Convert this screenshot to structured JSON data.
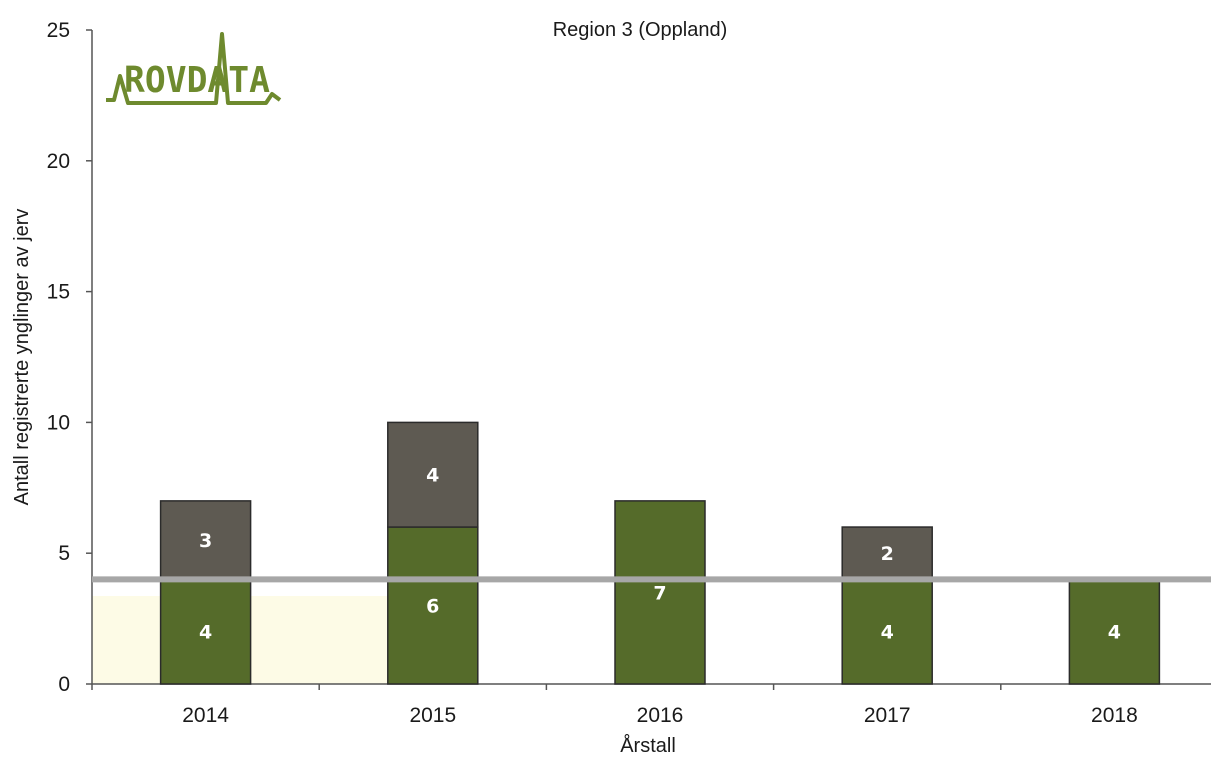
{
  "chart_data": {
    "type": "bar",
    "stacked": true,
    "title": "Region 3 (Oppland)",
    "xlabel": "Årstall",
    "ylabel": "Antall registrerte ynglinger av jerv",
    "ylim": [
      0,
      25
    ],
    "yticks": [
      0,
      5,
      10,
      15,
      20,
      25
    ],
    "categories": [
      "2014",
      "2015",
      "2016",
      "2017",
      "2018"
    ],
    "series": [
      {
        "values": [
          4,
          6,
          7,
          4,
          4
        ],
        "color": "#556b2a"
      },
      {
        "values": [
          3,
          4,
          0,
          2,
          0
        ],
        "color": "#5e5a52"
      }
    ],
    "reference_line": {
      "value": 4,
      "color": "#a7a7a7"
    },
    "grid": false,
    "legend": "none"
  },
  "logo": {
    "text": "ROVDATA",
    "color": "#6e8a2e"
  }
}
